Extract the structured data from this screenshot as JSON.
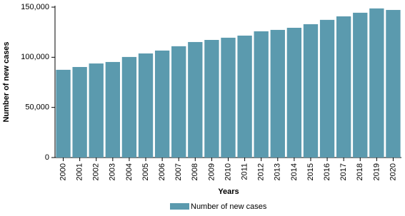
{
  "chart_data": {
    "type": "bar",
    "x_label": "Years",
    "y_label": "Number of new cases",
    "categories": [
      "2000",
      "2001",
      "2002",
      "2003",
      "2004",
      "2005",
      "2006",
      "2007",
      "2008",
      "2009",
      "2010",
      "2011",
      "2012",
      "2013",
      "2014",
      "2015",
      "2016",
      "2017",
      "2018",
      "2019",
      "2020"
    ],
    "series": [
      {
        "name": "Number of new cases",
        "color": "#5b9aae",
        "values": [
          87500,
          90300,
          93800,
          95300,
          100300,
          103800,
          106700,
          111000,
          115200,
          117300,
          119500,
          121600,
          125900,
          127300,
          129400,
          133000,
          137300,
          140800,
          144400,
          148700,
          147200
        ]
      }
    ],
    "ylim": [
      0,
      150000
    ],
    "yticks": [
      0,
      {
        "value": 50000,
        "label": "50,000"
      },
      {
        "value": 100000,
        "label": "100,000"
      },
      {
        "value": 150000,
        "label": "150,000"
      }
    ],
    "grid": false,
    "legend": "bottom"
  }
}
